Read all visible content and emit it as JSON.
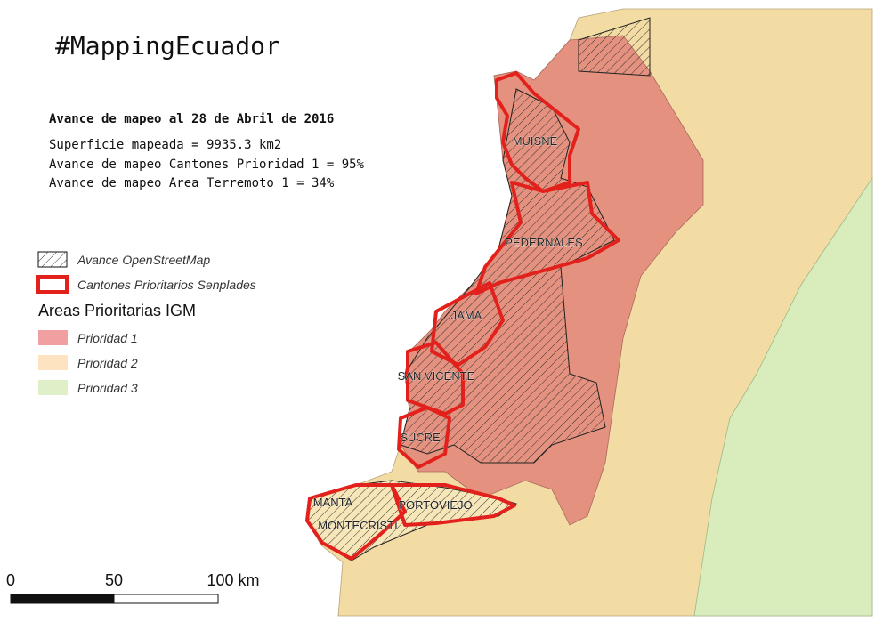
{
  "title": "#MappingEcuador",
  "summary": {
    "heading": "Avance de mapeo al 28 de Abril de 2016",
    "lines": [
      "Superficie mapeada = 9935.3 km2",
      "Avance de mapeo Cantones Prioridad 1 = 95%",
      "Avance de mapeo Area Terremoto 1 = 34%"
    ]
  },
  "legend": {
    "items": [
      "Avance OpenStreetMap",
      "Cantones Prioritarios Senplades"
    ],
    "group_title": "Areas Prioritarias IGM",
    "priorities": [
      {
        "label": "Prioridad 1",
        "color": "#f0a0a0"
      },
      {
        "label": "Prioridad 2",
        "color": "#fde3c0"
      },
      {
        "label": "Prioridad 3",
        "color": "#dff0c8"
      }
    ]
  },
  "places": [
    "MUISNE",
    "PEDERNALES",
    "JAMA",
    "SAN VICENTE",
    "SUCRE",
    "MANTA",
    "PORTOVIEJO",
    "MONTECRISTI"
  ],
  "scale_bar": {
    "labels": [
      "0",
      "50",
      "100 km"
    ]
  }
}
